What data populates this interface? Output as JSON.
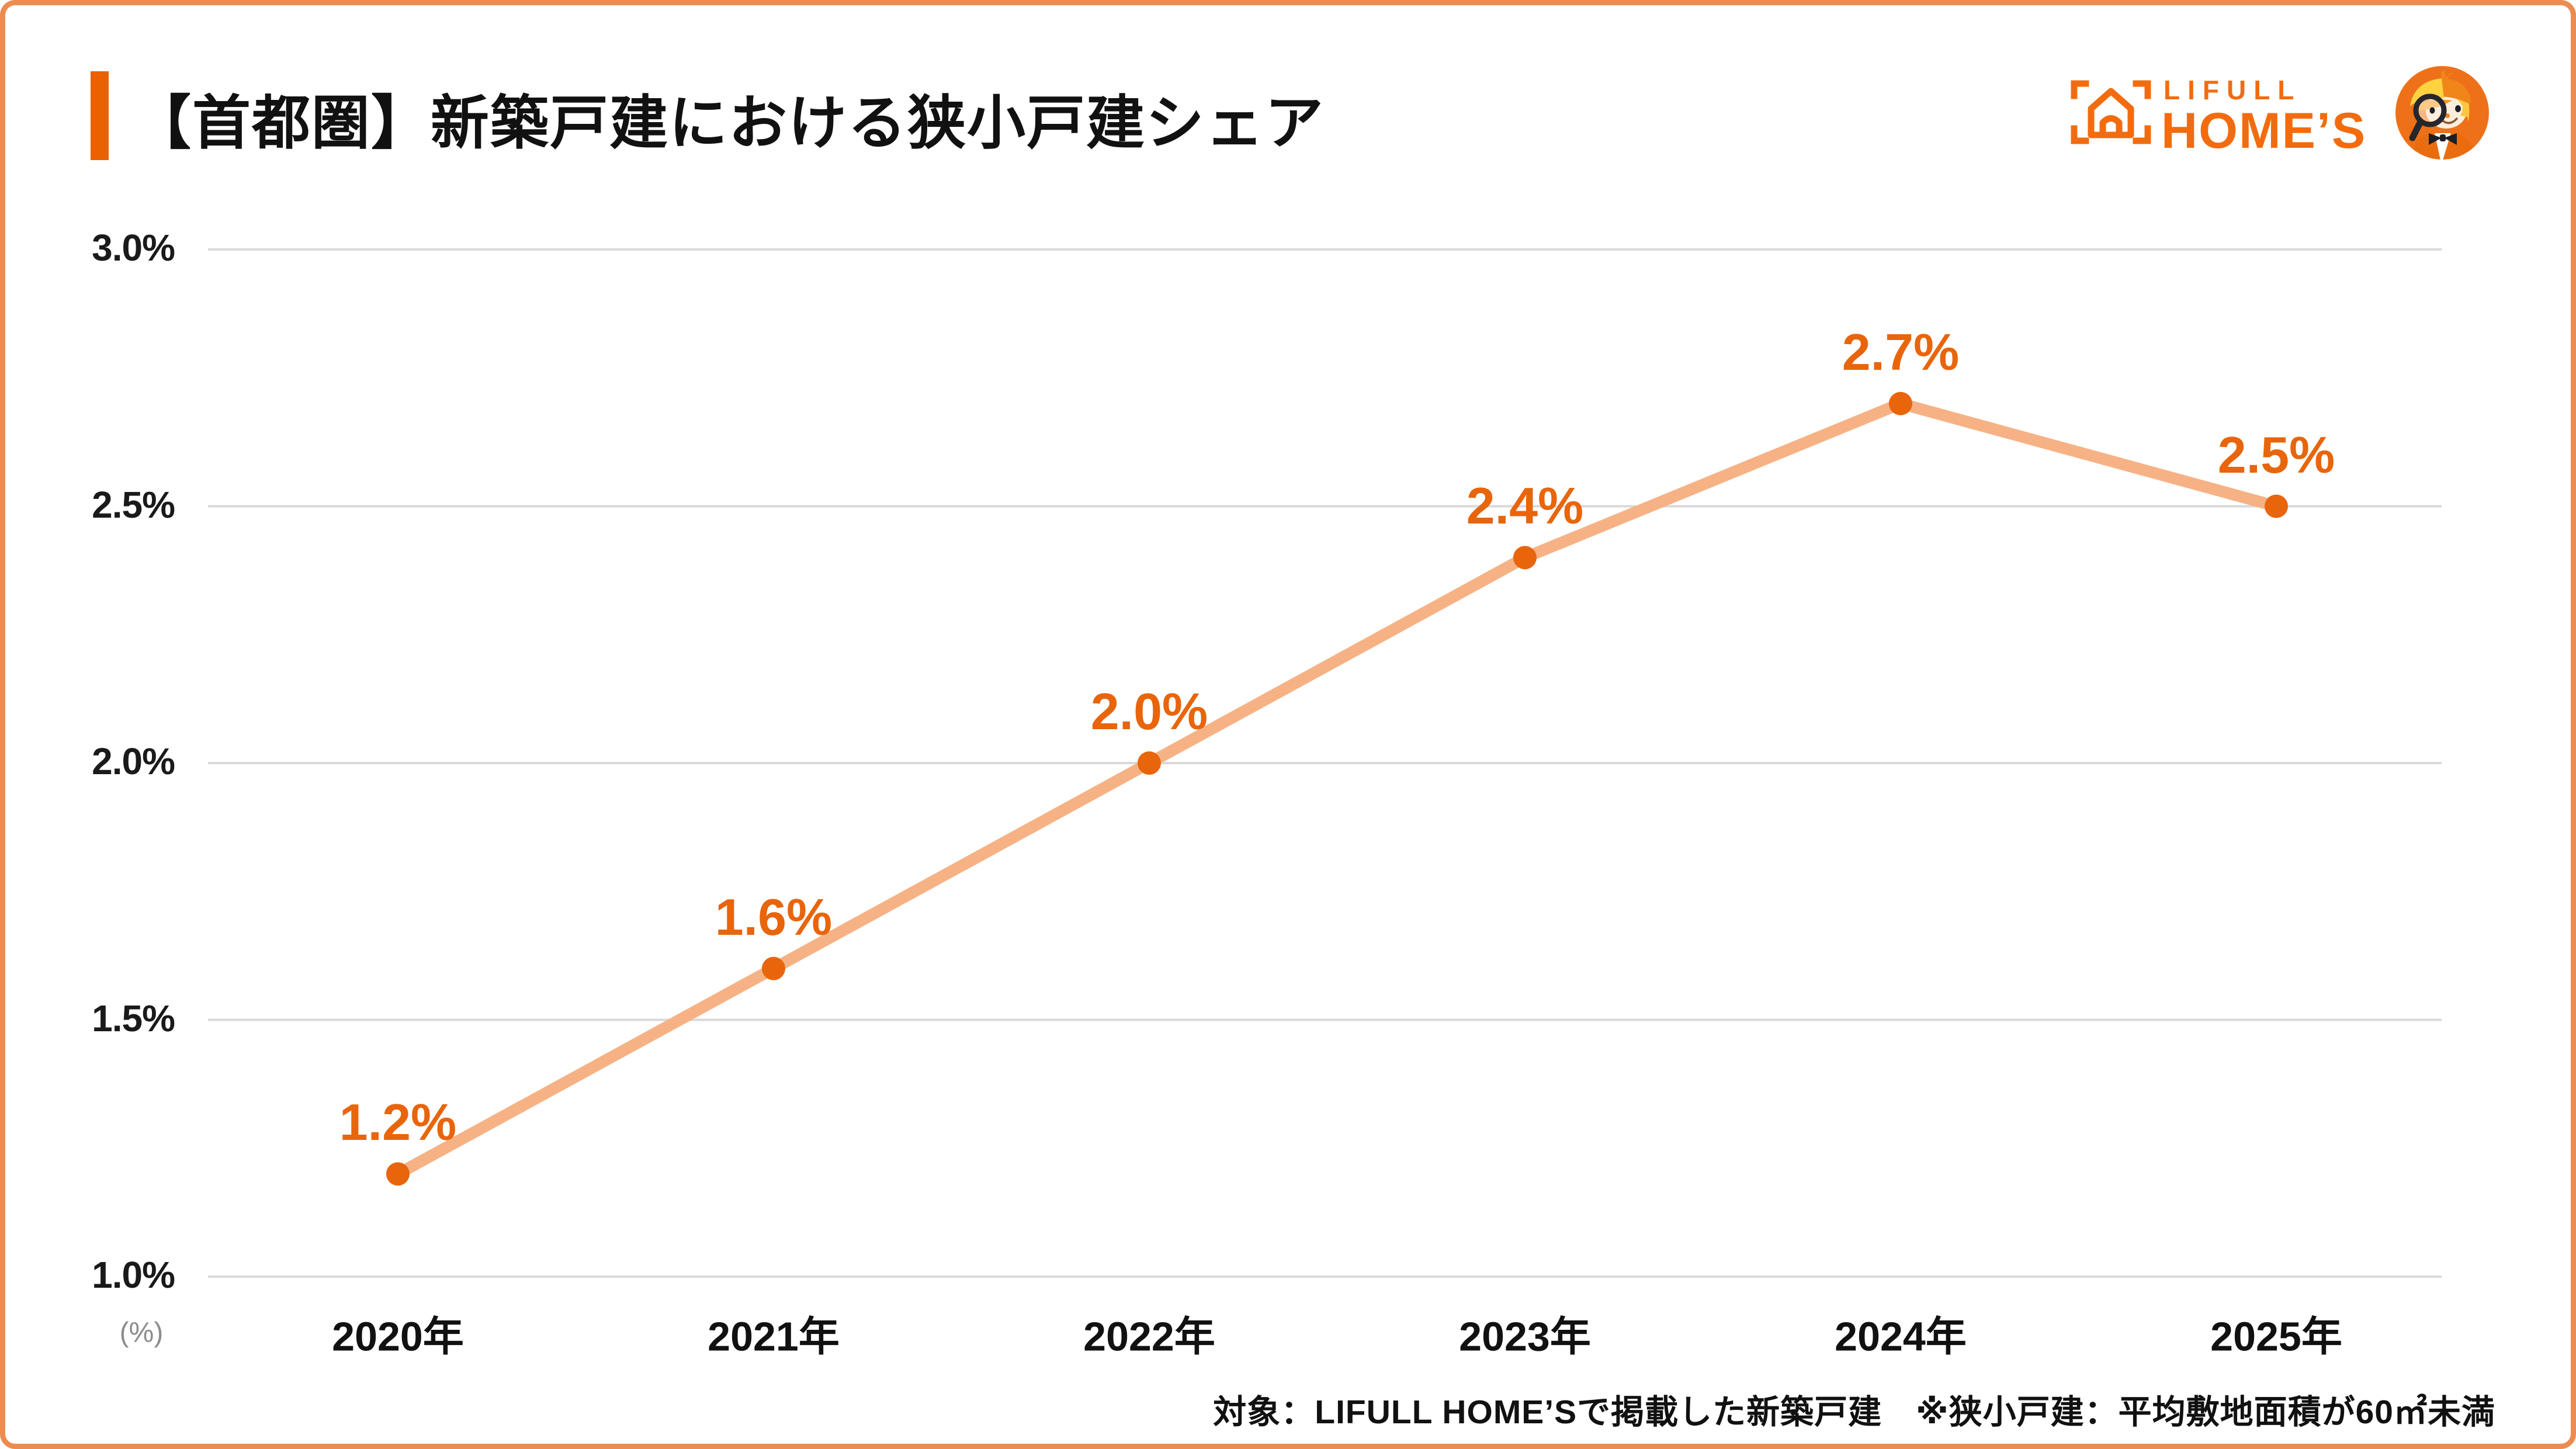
{
  "header": {
    "title": "【首都圏】新築戸建における狭小戸建シェア"
  },
  "logo": {
    "brand_top": "LIFULL",
    "brand_bottom": "HOME’S",
    "mark": "house-in-brackets-icon",
    "mascot": "homes-kun-mascot-with-magnifying-glass"
  },
  "footer": {
    "note": "対象：LIFULL HOME’Sで掲載した新築戸建　※狭小戸建：平均敷地面積が60㎡未満"
  },
  "colors": {
    "accent": "#EB6100",
    "marker": "#E8650C",
    "line": "#F6B285",
    "grid": "#D9D9D9",
    "border": "#ED8C50",
    "brand": "#F26C0F",
    "muted": "#8C8C8C",
    "text": "#111111"
  },
  "chart_data": {
    "type": "line",
    "title": "【首都圏】新築戸建における狭小戸建シェア",
    "categories": [
      "2020年",
      "2021年",
      "2022年",
      "2023年",
      "2024年",
      "2025年"
    ],
    "values": [
      1.2,
      1.6,
      2.0,
      2.4,
      2.7,
      2.5
    ],
    "point_labels": [
      "1.2%",
      "1.6%",
      "2.0%",
      "2.4%",
      "2.7%",
      "2.5%"
    ],
    "yticks": [
      3.0,
      2.5,
      2.0,
      1.5,
      1.0
    ],
    "ytick_labels": [
      "3.0%",
      "2.5%",
      "2.0%",
      "1.5%",
      "1.0%"
    ],
    "ylim": [
      1.0,
      3.0
    ],
    "unit_label": "(%)",
    "grid": "horizontal-only",
    "legend": "none",
    "series_name": "狭小戸建シェア"
  }
}
